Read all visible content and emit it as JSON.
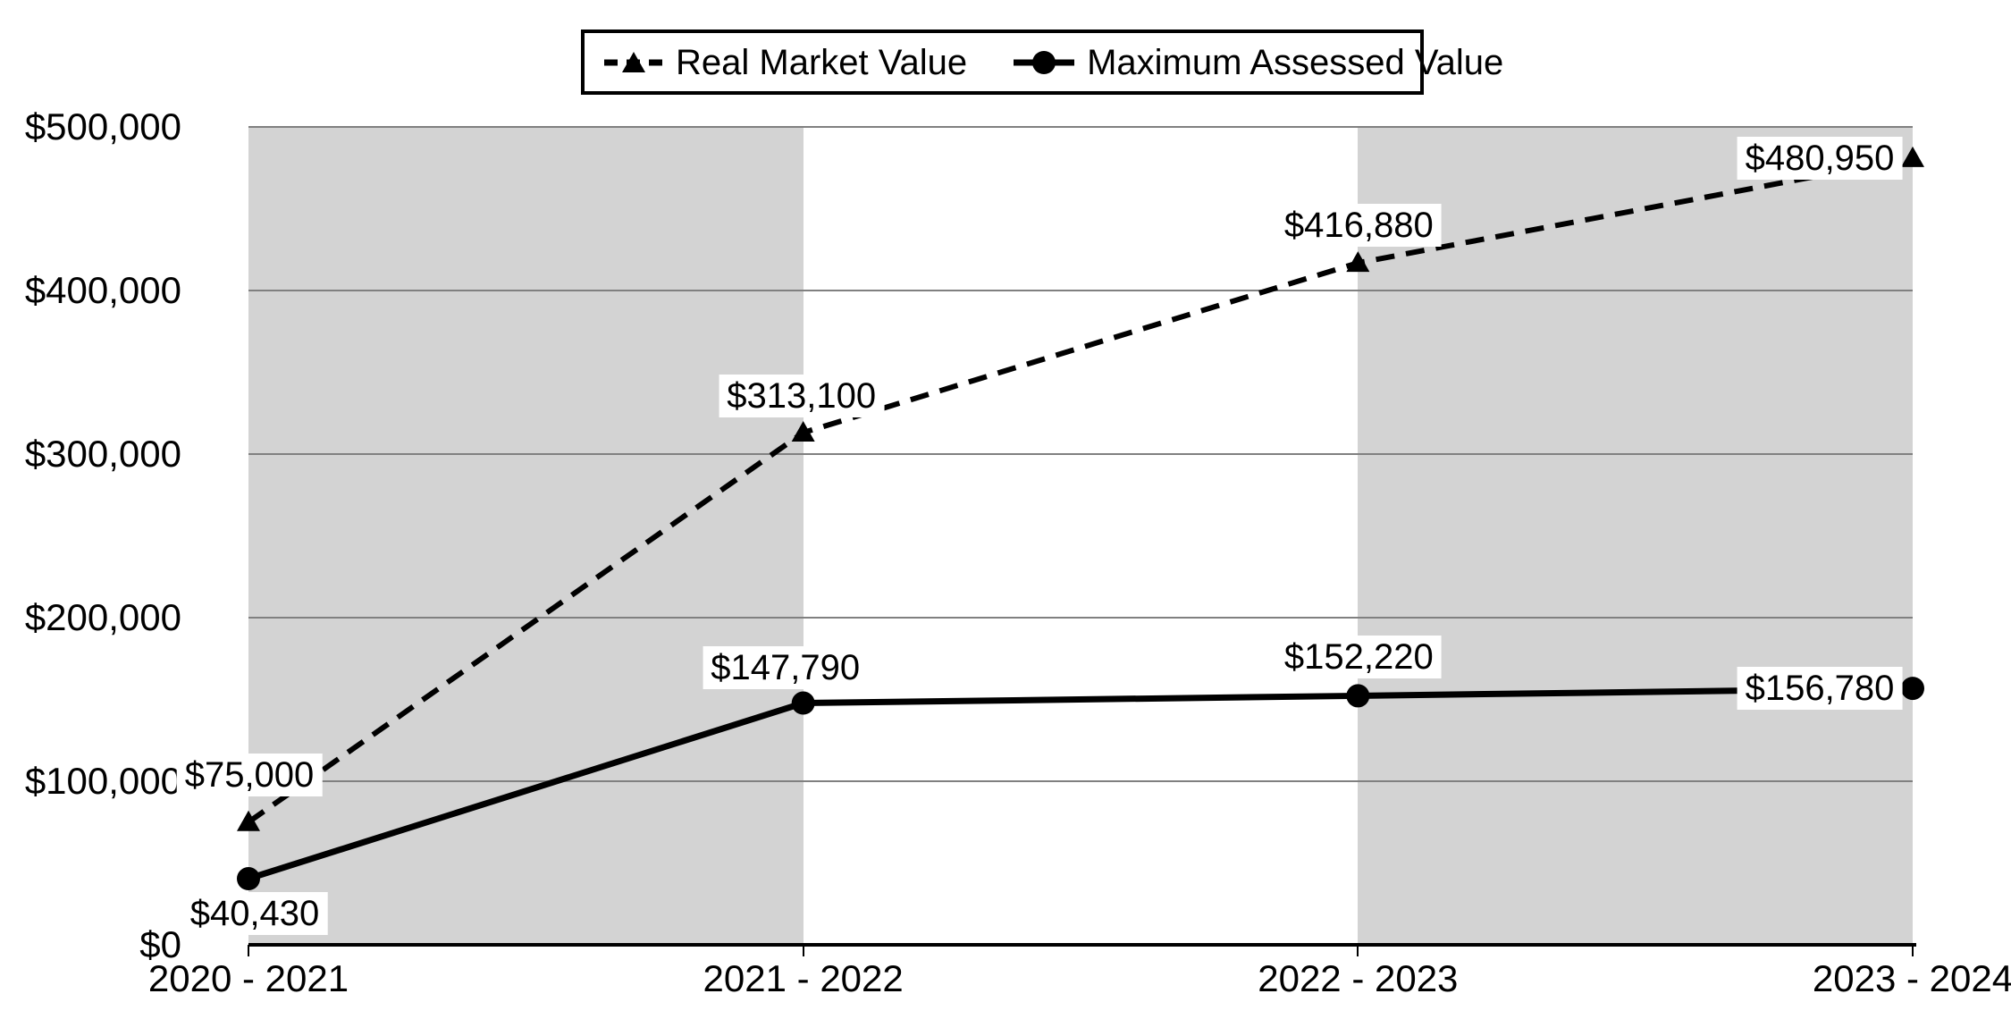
{
  "chart_data": {
    "type": "line",
    "title": "",
    "categories": [
      "2020 - 2021",
      "2021 - 2022",
      "2022 - 2023",
      "2023 - 2024"
    ],
    "x_axis": {
      "tick_count": 4
    },
    "y_axis": {
      "min": 0,
      "max": 500000,
      "tick_step": 100000,
      "tick_labels": [
        "$0",
        "$100,000",
        "$200,000",
        "$300,000",
        "$400,000",
        "$500,000"
      ]
    },
    "series": [
      {
        "name": "Real Market Value",
        "line_style": "dashed",
        "marker": "triangle",
        "color": "#000000",
        "values": [
          75000,
          313100,
          416880,
          480950
        ],
        "labels": [
          "$75,000",
          "$313,100",
          "$416,880",
          "$480,950"
        ]
      },
      {
        "name": "Maximum Assessed Value",
        "line_style": "solid",
        "marker": "circle",
        "color": "#000000",
        "values": [
          40430,
          147790,
          152220,
          156780
        ],
        "labels": [
          "$40,430",
          "$147,790",
          "$152,220",
          "$156,780"
        ]
      }
    ],
    "legend_position": "top",
    "grid_on": true,
    "band_color": "#d3d3d3",
    "gridline_color": "#808080",
    "background_color": "#ffffff"
  }
}
